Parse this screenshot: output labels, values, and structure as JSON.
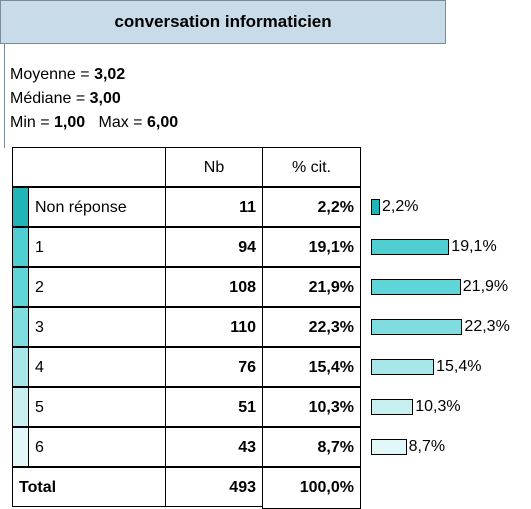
{
  "title": "conversation informaticien",
  "stats": [
    [
      {
        "label": "Moyenne = ",
        "value": "3,02"
      }
    ],
    [
      {
        "label": "Médiane = ",
        "value": "3,00"
      }
    ],
    [
      {
        "label": "Min = ",
        "value": "1,00"
      },
      {
        "label": "Max = ",
        "value": "6,00"
      }
    ]
  ],
  "table": {
    "header": [
      "Nb",
      "% cit."
    ],
    "rows": [
      {
        "label": "Non réponse",
        "nb": "11",
        "pct": 2.2,
        "pct_label": "2,2%",
        "color": "#22b5b8"
      },
      {
        "label": "1",
        "nb": "94",
        "pct": 19.1,
        "pct_label": "19,1%",
        "color": "#4fcfd2"
      },
      {
        "label": "2",
        "nb": "108",
        "pct": 21.9,
        "pct_label": "21,9%",
        "color": "#5fd5d8"
      },
      {
        "label": "3",
        "nb": "110",
        "pct": 22.3,
        "pct_label": "22,3%",
        "color": "#7fdcdf"
      },
      {
        "label": "4",
        "nb": "76",
        "pct": 15.4,
        "pct_label": "15,4%",
        "color": "#a8e7e9"
      },
      {
        "label": "5",
        "nb": "51",
        "pct": 10.3,
        "pct_label": "10,3%",
        "color": "#c8f0f1"
      },
      {
        "label": "6",
        "nb": "43",
        "pct": 8.7,
        "pct_label": "8,7%",
        "color": "#e2f7f8"
      }
    ],
    "total": {
      "label": "Total",
      "nb": "493",
      "pct_label": "100,0%"
    }
  }
}
